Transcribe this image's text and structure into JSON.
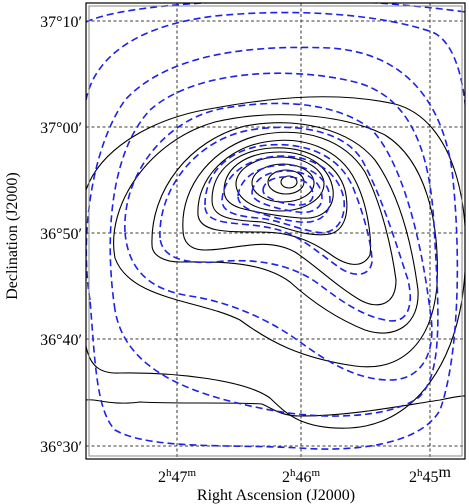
{
  "chart_data": {
    "type": "contour",
    "xlabel": "Right Ascension (J2000)",
    "ylabel": "Declination (J2000)",
    "x_ticks": [
      {
        "h": "2",
        "m": "47",
        "m_unit": "m"
      },
      {
        "h": "2",
        "m": "46",
        "m_unit": "m"
      },
      {
        "h": "2",
        "m": "45",
        "m_unit": "m"
      }
    ],
    "y_ticks": [
      "37°10′",
      "37°00′",
      "36°50′",
      "36°40′",
      "36°30′"
    ],
    "xlim_ra_min": [
      47.45,
      44.8
    ],
    "ylim_dec_arcmin": [
      -31.5,
      12.0
    ],
    "grid": true,
    "series": [
      {
        "style": "solid",
        "color": "#000000"
      },
      {
        "style": "dashed",
        "color": "#1e22e6"
      }
    ]
  }
}
